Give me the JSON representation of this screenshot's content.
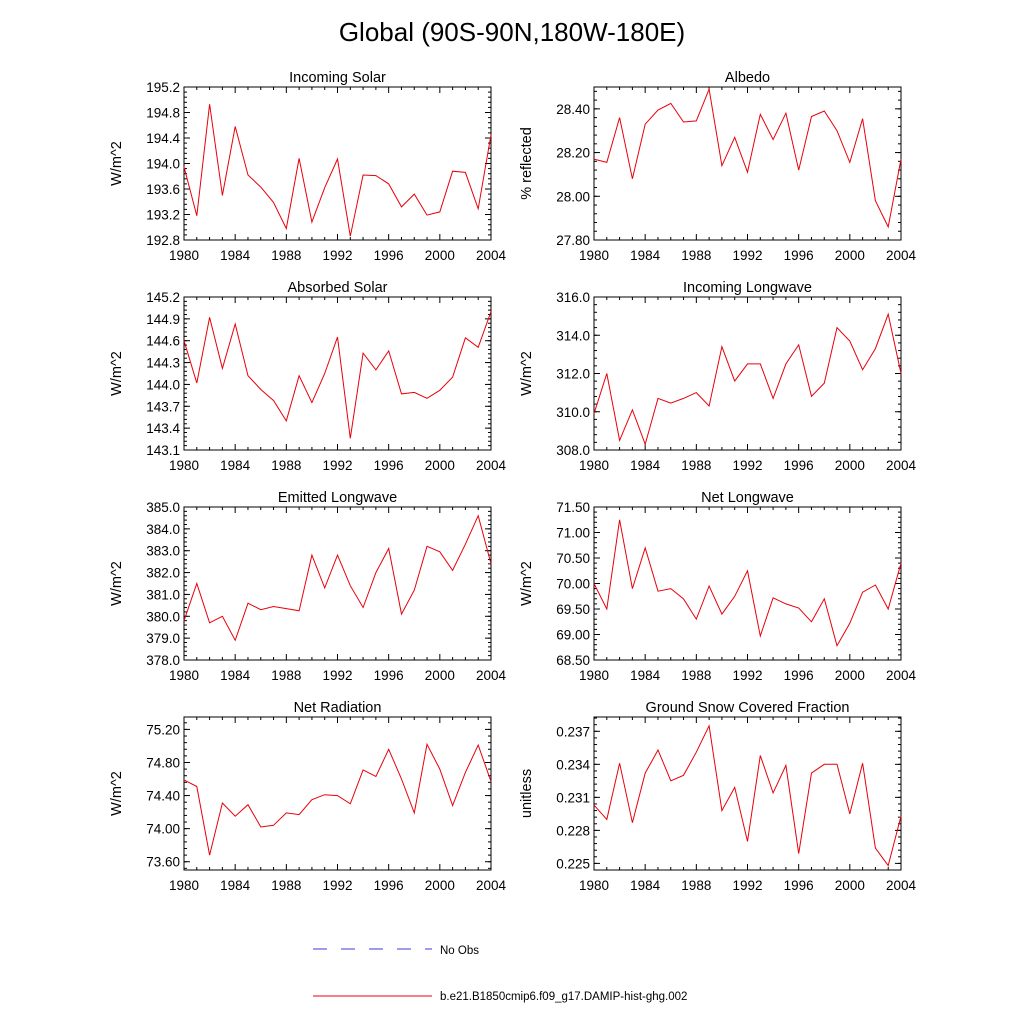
{
  "figure": {
    "title": "Global (90S-90N,180W-180E)",
    "line_color": "#e8000b",
    "obs_color": "#3b3bd6"
  },
  "legend": {
    "entries": [
      {
        "label": "No Obs",
        "style": "dashed",
        "color": "#3b3bd6"
      },
      {
        "label": "b.e21.B1850cmip6.f09_g17.DAMIP-hist-ghg.002",
        "style": "solid",
        "color": "#e8000b"
      }
    ]
  },
  "chart_data": [
    {
      "type": "line",
      "title": "Incoming Solar",
      "ylabel": "W/m^2",
      "xlim": [
        1980,
        2004
      ],
      "ylim": [
        192.8,
        195.2
      ],
      "yticks": [
        "192.8",
        "193.2",
        "193.6",
        "194.0",
        "194.4",
        "194.8",
        "195.2"
      ],
      "xticks": [
        "1980",
        "1984",
        "1988",
        "1992",
        "1996",
        "2000",
        "2004"
      ],
      "x": [
        1980,
        1981,
        1982,
        1983,
        1984,
        1985,
        1986,
        1987,
        1988,
        1989,
        1990,
        1991,
        1992,
        1993,
        1994,
        1995,
        1996,
        1997,
        1998,
        1999,
        2000,
        2001,
        2002,
        2003,
        2004
      ],
      "series": [
        {
          "name": "b.e21.B1850cmip6.f09_g17.DAMIP-hist-ghg.002",
          "values": [
            193.95,
            193.18,
            194.93,
            193.5,
            194.58,
            193.82,
            193.63,
            193.39,
            192.98,
            194.08,
            193.08,
            193.62,
            194.07,
            192.86,
            193.82,
            193.81,
            193.68,
            193.32,
            193.52,
            193.19,
            193.24,
            193.88,
            193.86,
            193.29,
            194.45
          ]
        }
      ]
    },
    {
      "type": "line",
      "title": "Albedo",
      "ylabel": "% reflected",
      "xlim": [
        1980,
        2004
      ],
      "ylim": [
        27.8,
        28.5
      ],
      "yticks": [
        "27.80",
        "28.00",
        "28.20",
        "28.40"
      ],
      "xticks": [
        "1980",
        "1984",
        "1988",
        "1992",
        "1996",
        "2000",
        "2004"
      ],
      "x": [
        1980,
        1981,
        1982,
        1983,
        1984,
        1985,
        1986,
        1987,
        1988,
        1989,
        1990,
        1991,
        1992,
        1993,
        1994,
        1995,
        1996,
        1997,
        1998,
        1999,
        2000,
        2001,
        2002,
        2003,
        2004
      ],
      "series": [
        {
          "name": "b.e21.B1850cmip6.f09_g17.DAMIP-hist-ghg.002",
          "values": [
            28.17,
            28.155,
            28.36,
            28.08,
            28.33,
            28.395,
            28.425,
            28.34,
            28.345,
            28.49,
            28.14,
            28.27,
            28.11,
            28.375,
            28.26,
            28.38,
            28.12,
            28.365,
            28.39,
            28.3,
            28.155,
            28.355,
            27.98,
            27.86,
            28.17
          ]
        }
      ]
    },
    {
      "type": "line",
      "title": "Absorbed Solar",
      "ylabel": "W/m^2",
      "xlim": [
        1980,
        2004
      ],
      "ylim": [
        143.1,
        145.2
      ],
      "yticks": [
        "143.1",
        "143.4",
        "143.7",
        "144.0",
        "144.3",
        "144.6",
        "144.9",
        "145.2"
      ],
      "xticks": [
        "1980",
        "1984",
        "1988",
        "1992",
        "1996",
        "2000",
        "2004"
      ],
      "x": [
        1980,
        1981,
        1982,
        1983,
        1984,
        1985,
        1986,
        1987,
        1988,
        1989,
        1990,
        1991,
        1992,
        1993,
        1994,
        1995,
        1996,
        1997,
        1998,
        1999,
        2000,
        2001,
        2002,
        2003,
        2004
      ],
      "series": [
        {
          "name": "b.e21.B1850cmip6.f09_g17.DAMIP-hist-ghg.002",
          "values": [
            144.6,
            144.02,
            144.92,
            144.22,
            144.83,
            144.12,
            143.93,
            143.78,
            143.5,
            144.12,
            143.75,
            144.15,
            144.65,
            143.26,
            144.43,
            144.2,
            144.46,
            143.87,
            143.89,
            143.81,
            143.92,
            144.1,
            144.64,
            144.51,
            145.0
          ]
        }
      ]
    },
    {
      "type": "line",
      "title": "Incoming Longwave",
      "ylabel": "W/m^2",
      "xlim": [
        1980,
        2004
      ],
      "ylim": [
        308.0,
        316.0
      ],
      "yticks": [
        "308.0",
        "310.0",
        "312.0",
        "314.0",
        "316.0"
      ],
      "xticks": [
        "1980",
        "1984",
        "1988",
        "1992",
        "1996",
        "2000",
        "2004"
      ],
      "x": [
        1980,
        1981,
        1982,
        1983,
        1984,
        1985,
        1986,
        1987,
        1988,
        1989,
        1990,
        1991,
        1992,
        1993,
        1994,
        1995,
        1996,
        1997,
        1998,
        1999,
        2000,
        2001,
        2002,
        2003,
        2004
      ],
      "series": [
        {
          "name": "b.e21.B1850cmip6.f09_g17.DAMIP-hist-ghg.002",
          "values": [
            309.9,
            312.0,
            308.5,
            310.1,
            308.3,
            310.7,
            310.45,
            310.7,
            311.0,
            310.3,
            313.4,
            311.6,
            312.5,
            312.5,
            310.7,
            312.5,
            313.5,
            310.8,
            311.5,
            314.4,
            313.7,
            312.2,
            313.3,
            315.1,
            312.0
          ]
        }
      ]
    },
    {
      "type": "line",
      "title": "Emitted Longwave",
      "ylabel": "W/m^2",
      "xlim": [
        1980,
        2004
      ],
      "ylim": [
        378.0,
        385.0
      ],
      "yticks": [
        "378.0",
        "379.0",
        "380.0",
        "381.0",
        "382.0",
        "383.0",
        "384.0",
        "385.0"
      ],
      "xticks": [
        "1980",
        "1984",
        "1988",
        "1992",
        "1996",
        "2000",
        "2004"
      ],
      "x": [
        1980,
        1981,
        1982,
        1983,
        1984,
        1985,
        1986,
        1987,
        1988,
        1989,
        1990,
        1991,
        1992,
        1993,
        1994,
        1995,
        1996,
        1997,
        1998,
        1999,
        2000,
        2001,
        2002,
        2003,
        2004
      ],
      "series": [
        {
          "name": "b.e21.B1850cmip6.f09_g17.DAMIP-hist-ghg.002",
          "values": [
            379.8,
            381.5,
            379.7,
            380.0,
            378.9,
            380.6,
            380.3,
            380.45,
            380.35,
            380.25,
            382.8,
            381.3,
            382.8,
            381.4,
            380.4,
            382.0,
            383.1,
            380.1,
            381.2,
            383.2,
            382.95,
            382.1,
            383.3,
            384.6,
            382.4
          ]
        }
      ]
    },
    {
      "type": "line",
      "title": "Net Longwave",
      "ylabel": "W/m^2",
      "xlim": [
        1980,
        2004
      ],
      "ylim": [
        68.5,
        71.5
      ],
      "yticks": [
        "68.50",
        "69.00",
        "69.50",
        "70.00",
        "70.50",
        "71.00",
        "71.50"
      ],
      "xticks": [
        "1980",
        "1984",
        "1988",
        "1992",
        "1996",
        "2000",
        "2004"
      ],
      "x": [
        1980,
        1981,
        1982,
        1983,
        1984,
        1985,
        1986,
        1987,
        1988,
        1989,
        1990,
        1991,
        1992,
        1993,
        1994,
        1995,
        1996,
        1997,
        1998,
        1999,
        2000,
        2001,
        2002,
        2003,
        2004
      ],
      "series": [
        {
          "name": "b.e21.B1850cmip6.f09_g17.DAMIP-hist-ghg.002",
          "values": [
            70.0,
            69.5,
            71.25,
            69.9,
            70.7,
            69.85,
            69.9,
            69.7,
            69.3,
            69.95,
            69.4,
            69.75,
            70.25,
            68.97,
            69.72,
            69.6,
            69.52,
            69.25,
            69.7,
            68.78,
            69.22,
            69.83,
            69.97,
            69.5,
            70.4
          ]
        }
      ]
    },
    {
      "type": "line",
      "title": "Net Radiation",
      "ylabel": "W/m^2",
      "xlim": [
        1980,
        2004
      ],
      "ylim": [
        73.5,
        75.35
      ],
      "yticks": [
        "73.60",
        "74.00",
        "74.40",
        "74.80",
        "75.20"
      ],
      "xticks": [
        "1980",
        "1984",
        "1988",
        "1992",
        "1996",
        "2000",
        "2004"
      ],
      "x": [
        1980,
        1981,
        1982,
        1983,
        1984,
        1985,
        1986,
        1987,
        1988,
        1989,
        1990,
        1991,
        1992,
        1993,
        1994,
        1995,
        1996,
        1997,
        1998,
        1999,
        2000,
        2001,
        2002,
        2003,
        2004
      ],
      "series": [
        {
          "name": "b.e21.B1850cmip6.f09_g17.DAMIP-hist-ghg.002",
          "values": [
            74.59,
            74.51,
            73.68,
            74.31,
            74.15,
            74.29,
            74.02,
            74.04,
            74.19,
            74.17,
            74.35,
            74.41,
            74.4,
            74.3,
            74.71,
            74.63,
            74.96,
            74.6,
            74.19,
            75.02,
            74.72,
            74.28,
            74.68,
            75.01,
            74.57
          ]
        }
      ]
    },
    {
      "type": "line",
      "title": "Ground Snow Covered Fraction",
      "ylabel": "unitless",
      "xlim": [
        1980,
        2004
      ],
      "ylim": [
        0.2244,
        0.2383
      ],
      "yticks": [
        "0.225",
        "0.228",
        "0.231",
        "0.234",
        "0.237"
      ],
      "xticks": [
        "1980",
        "1984",
        "1988",
        "1992",
        "1996",
        "2000",
        "2004"
      ],
      "x": [
        1980,
        1981,
        1982,
        1983,
        1984,
        1985,
        1986,
        1987,
        1988,
        1989,
        1990,
        1991,
        1992,
        1993,
        1994,
        1995,
        1996,
        1997,
        1998,
        1999,
        2000,
        2001,
        2002,
        2003,
        2004
      ],
      "series": [
        {
          "name": "b.e21.B1850cmip6.f09_g17.DAMIP-hist-ghg.002",
          "values": [
            0.2303,
            0.229,
            0.2341,
            0.2287,
            0.2332,
            0.2353,
            0.2325,
            0.233,
            0.2351,
            0.2375,
            0.2298,
            0.2319,
            0.227,
            0.2348,
            0.2314,
            0.2339,
            0.2259,
            0.2332,
            0.234,
            0.234,
            0.2295,
            0.2341,
            0.2264,
            0.2248,
            0.2293
          ]
        }
      ]
    }
  ]
}
